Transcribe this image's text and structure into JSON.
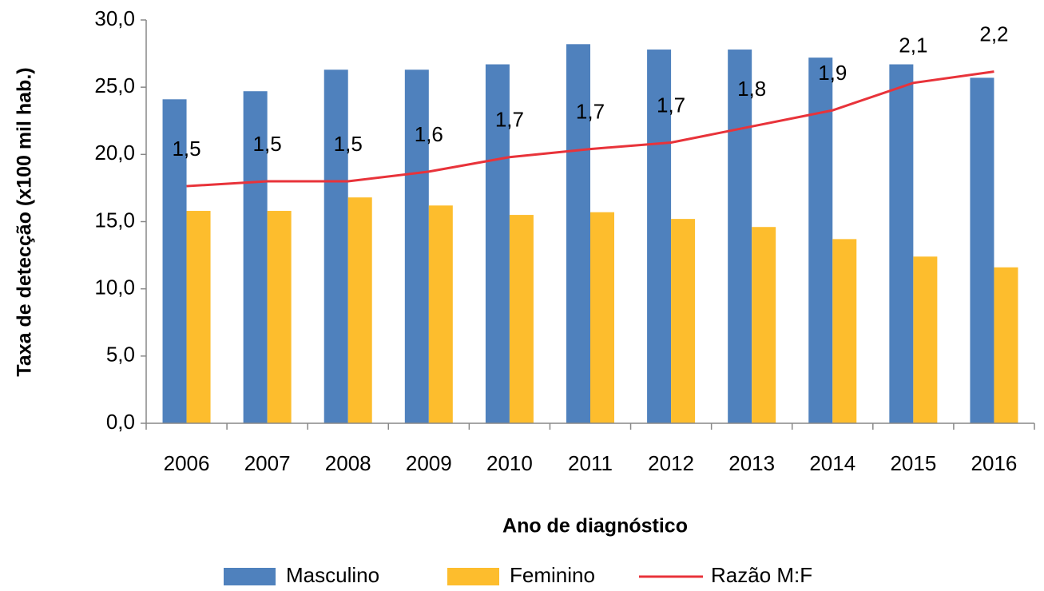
{
  "chart_data": {
    "type": "bar",
    "x_label": "Ano de diagnóstico",
    "y_label": "Taxa de detecção (x100 mil hab.)",
    "categories": [
      "2006",
      "2007",
      "2008",
      "2009",
      "2010",
      "2011",
      "2012",
      "2013",
      "2014",
      "2015",
      "2016"
    ],
    "series": [
      {
        "name": "Masculino",
        "color": "#4f81bd",
        "type": "bar",
        "values": [
          24.1,
          24.7,
          26.3,
          26.3,
          26.7,
          28.2,
          27.8,
          27.8,
          27.2,
          26.7,
          25.7
        ]
      },
      {
        "name": "Feminino",
        "color": "#fdbd2d",
        "type": "bar",
        "values": [
          15.8,
          15.8,
          16.8,
          16.2,
          15.5,
          15.7,
          15.2,
          14.6,
          13.7,
          12.4,
          11.6
        ]
      },
      {
        "name": "Razão M:F",
        "color": "#e8333a",
        "type": "line",
        "axis": "y2",
        "values": [
          1.47,
          1.5,
          1.5,
          1.56,
          1.65,
          1.7,
          1.74,
          1.84,
          1.94,
          2.11,
          2.18
        ],
        "value_labels": [
          "1,5",
          "1,5",
          "1,5",
          "1,6",
          "1,7",
          "1,7",
          "1,7",
          "1,8",
          "1,9",
          "2,1",
          "2,2"
        ]
      }
    ],
    "ylim": [
      0,
      30
    ],
    "yticks": [
      {
        "value": 0,
        "label": "0,0"
      },
      {
        "value": 5,
        "label": "5,0"
      },
      {
        "value": 10,
        "label": "10,0"
      },
      {
        "value": 15,
        "label": "15,0"
      },
      {
        "value": 20,
        "label": "20,0"
      },
      {
        "value": 25,
        "label": "25,0"
      },
      {
        "value": 30,
        "label": "30,0"
      }
    ],
    "y2lim": [
      0,
      2.5
    ],
    "grid": false,
    "legend": "bottom"
  }
}
